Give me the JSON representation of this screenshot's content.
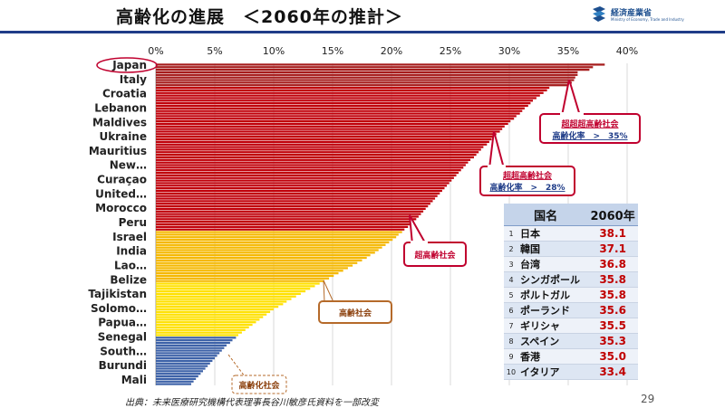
{
  "slide": {
    "title": "高齢化の進展　＜2060年の推計＞",
    "logo_text": "経済産業省",
    "logo_sub": "Ministry of Economy, Trade and Industry",
    "source": "出典：未来医療研究機構代表理事長谷川敏彦氏資料を一部改変",
    "page_number": "29"
  },
  "colors": {
    "super_super_super": "#a61c1c",
    "super": "#c0000a",
    "aging": "#f5b800",
    "aging_light": "#ffe100",
    "aging_society": "#3d62a8",
    "title_bar": "#1f3c88",
    "callout_border": "#c0002e"
  },
  "chart_data": {
    "type": "bar",
    "orientation": "horizontal",
    "title": "",
    "xlabel": "",
    "ylabel": "",
    "xlim": [
      0,
      40
    ],
    "x_ticks": [
      "0%",
      "5%",
      "10%",
      "15%",
      "20%",
      "25%",
      "30%",
      "35%",
      "40%"
    ],
    "grid": true,
    "y_tick_labels": [
      "Japan",
      "Italy",
      "Croatia",
      "Lebanon",
      "Maldives",
      "Ukraine",
      "Mauritius",
      "New…",
      "Curaçao",
      "United…",
      "Morocco",
      "Peru",
      "Israel",
      "India",
      "Lao…",
      "Belize",
      "Tajikistan",
      "Solomo…",
      "Papua…",
      "Senegal",
      "South…",
      "Burundi",
      "Mali"
    ],
    "values": [
      38.1,
      37.1,
      36.8,
      35.8,
      35.8,
      35.6,
      35.5,
      35.3,
      35.0,
      33.4,
      33.2,
      32.9,
      32.6,
      32.3,
      32.0,
      31.8,
      31.6,
      31.3,
      31.1,
      30.9,
      30.6,
      30.4,
      30.1,
      29.9,
      29.6,
      29.4,
      29.2,
      28.9,
      28.7,
      28.5,
      28.3,
      28.1,
      27.8,
      27.6,
      27.4,
      27.2,
      27.0,
      26.7,
      26.5,
      26.3,
      26.1,
      25.9,
      25.7,
      25.5,
      25.3,
      25.1,
      24.9,
      24.7,
      24.5,
      24.3,
      24.1,
      23.9,
      23.7,
      23.5,
      23.3,
      23.1,
      22.9,
      22.7,
      22.5,
      22.3,
      22.1,
      21.9,
      21.6,
      21.4,
      21.1,
      20.9,
      20.6,
      20.4,
      20.1,
      19.8,
      19.5,
      19.2,
      18.9,
      18.6,
      18.2,
      17.9,
      17.5,
      17.1,
      16.7,
      16.3,
      15.9,
      15.5,
      15.1,
      14.7,
      14.3,
      13.9,
      13.5,
      13.1,
      12.7,
      12.3,
      11.9,
      11.5,
      11.1,
      10.8,
      10.4,
      10.0,
      9.7,
      9.4,
      9.1,
      8.8,
      8.5,
      8.2,
      7.9,
      7.6,
      7.3,
      7.0,
      6.8,
      6.5,
      6.3,
      6.0,
      5.8,
      5.6,
      5.4,
      5.2,
      5.0,
      4.8,
      4.6,
      4.4,
      4.2,
      4.0,
      3.8,
      3.6,
      3.4,
      3.2,
      3.0
    ],
    "callouts": [
      {
        "label": "超超超高齢社会",
        "sub": "高齢化率　>　35%"
      },
      {
        "label": "超超高齢社会",
        "sub": "高齢化率　>　28%"
      },
      {
        "label": "超高齢社会",
        "sub": ""
      },
      {
        "label": "高齢社会",
        "sub": ""
      },
      {
        "label": "高齢化社会",
        "sub": ""
      }
    ]
  },
  "ranking_table": {
    "headers": [
      "国名",
      "2060年"
    ],
    "rows": [
      {
        "rank": "1",
        "name": "日本",
        "value": "38.1"
      },
      {
        "rank": "2",
        "name": "韓国",
        "value": "37.1"
      },
      {
        "rank": "3",
        "name": "台湾",
        "value": "36.8"
      },
      {
        "rank": "4",
        "name": "シンガポール",
        "value": "35.8"
      },
      {
        "rank": "5",
        "name": "ポルトガル",
        "value": "35.8"
      },
      {
        "rank": "6",
        "name": "ポーランド",
        "value": "35.6"
      },
      {
        "rank": "7",
        "name": "ギリシャ",
        "value": "35.5"
      },
      {
        "rank": "8",
        "name": "スペイン",
        "value": "35.3"
      },
      {
        "rank": "9",
        "name": "香港",
        "value": "35.0"
      },
      {
        "rank": "10",
        "name": "イタリア",
        "value": "33.4"
      }
    ]
  }
}
